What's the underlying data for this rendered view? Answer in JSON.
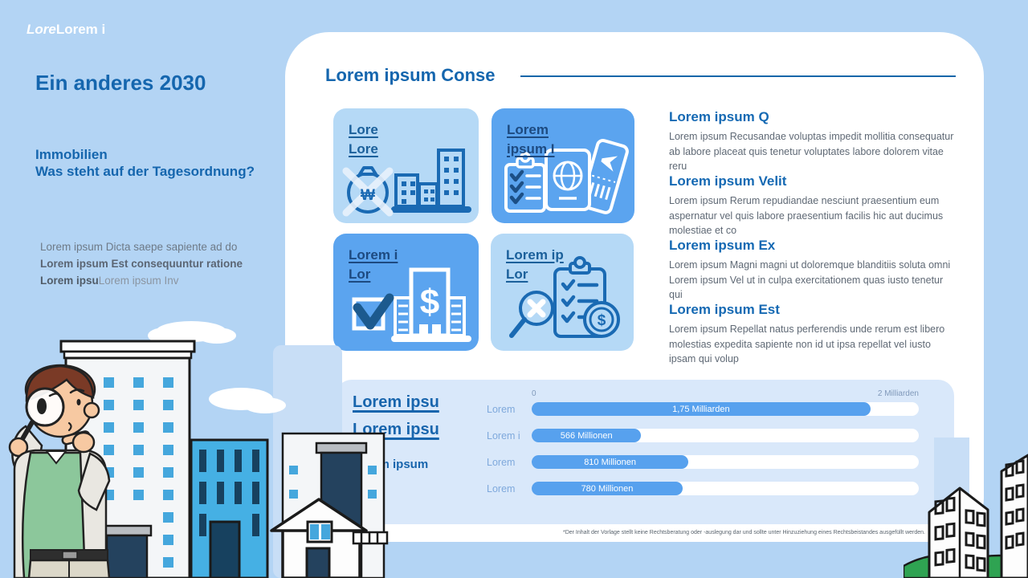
{
  "logo": {
    "italic_part": "Lore",
    "bold_part": "Lorem i"
  },
  "sidebar": {
    "heading": "Ein anderes 2030",
    "subtitle_line1": "Immobilien",
    "subtitle_line2": "Was steht auf der Tagesordnung?",
    "bullets": [
      {
        "text": "Lorem ipsum Dicta saepe sapiente ad do"
      },
      {
        "text": "Lorem ipsum Est consequuntur ratione"
      },
      {
        "bold": "Lorem ipsu",
        "rest": "Lorem ipsum Inv"
      }
    ]
  },
  "card": {
    "title": "Lorem ipsum Conse",
    "tiles": [
      {
        "line1": "Lore",
        "line2": "Lore",
        "style": "light",
        "icon": "money-bag-crossed-buildings-icon"
      },
      {
        "line1": "Lorem",
        "line2": "ipsum I",
        "style": "medium",
        "icon": "checklist-passport-ticket-icon"
      },
      {
        "line1": "Lorem i",
        "line2": "Lor",
        "style": "medium",
        "icon": "checkbox-bank-dollar-icon"
      },
      {
        "line1": "Lorem ip",
        "line2": "Lor",
        "style": "light",
        "icon": "magnifier-clipboard-coin-icon"
      }
    ],
    "sections": [
      {
        "heading": "Lorem ipsum Q",
        "body": "Lorem ipsum Recusandae voluptas impedit mollitia consequatur ab labore placeat quis tenetur voluptates labore dolorem vitae reru"
      },
      {
        "heading": "Lorem ipsum Velit",
        "body": "Lorem ipsum Rerum repudiandae nesciunt praesentium eum aspernatur vel quis labore praesentium facilis hic aut ducimus molestiae et co"
      },
      {
        "heading": "Lorem ipsum Ex",
        "body": "Lorem ipsum Magni magni ut doloremque blanditiis soluta omni Lorem ipsum Vel ut in culpa exercitationem quas iusto tenetur qui"
      },
      {
        "heading": "Lorem ipsum Est",
        "body": "Lorem ipsum Repellat natus perferendis unde rerum est libero molestias expedita sapiente non id ut ipsa repellat vel iusto ipsam qui volup"
      }
    ],
    "footnote": "*Der Inhalt der Vorlage stellt keine Rechtsberatung oder -auslegung dar und sollte unter Hinzuziehung eines Rechtsbeistandes ausgefüllt werden."
  },
  "chart_panel": {
    "link1": "Lorem ipsu",
    "link2": "Lorem ipsu",
    "caption": "Lorem ipsum"
  },
  "chart_data": {
    "type": "bar",
    "orientation": "horizontal",
    "categories": [
      "Lorem",
      "Lorem i",
      "Lorem",
      "Lorem"
    ],
    "values_millions": [
      1750,
      566,
      810,
      780
    ],
    "value_labels": [
      "1,75 Milliarden",
      "566 Millionen",
      "810 Millionen",
      "780 Millionen"
    ],
    "xlim_millions": [
      0,
      2000
    ],
    "axis_min_label": "0",
    "axis_max_label": "2 Milliarden",
    "bar_color": "#57a1ee",
    "track_color": "#ffffff",
    "grid": false,
    "legend": false
  },
  "colors": {
    "background": "#b3d4f4",
    "card": "#ffffff",
    "accent_blue": "#1566ae",
    "tile_light": "#b5d9f6",
    "tile_medium": "#5ba4ef",
    "panel": "#d9e8fa"
  }
}
